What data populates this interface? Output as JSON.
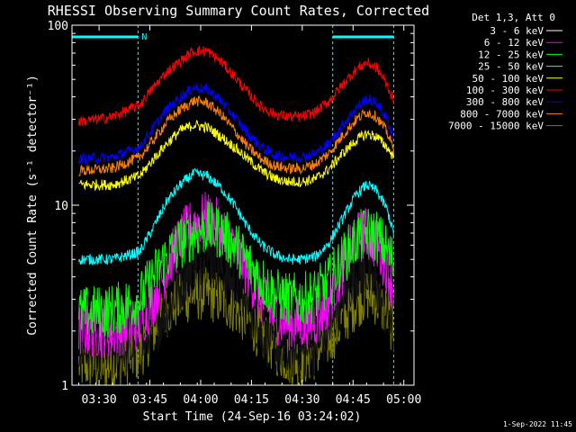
{
  "chart_data": {
    "type": "line",
    "title": "RHESSI Observing Summary Count Rates, Corrected",
    "xlabel": "Start Time (24-Sep-16 03:24:02)",
    "ylabel": "Corrected Count Rate (s⁻¹ detector⁻¹)",
    "yscale": "log",
    "ylim": [
      1,
      100
    ],
    "xlim_minutes": [
      -2,
      99
    ],
    "x_ticks": [
      {
        "label": "03:30",
        "minute": 6
      },
      {
        "label": "03:45",
        "minute": 21
      },
      {
        "label": "04:00",
        "minute": 36
      },
      {
        "label": "04:15",
        "minute": 51
      },
      {
        "label": "04:30",
        "minute": 66
      },
      {
        "label": "04:45",
        "minute": 81
      },
      {
        "label": "05:00",
        "minute": 96
      }
    ],
    "y_ticks": [
      {
        "label": "1",
        "value": 1
      },
      {
        "label": "10",
        "value": 10
      },
      {
        "label": "100",
        "value": 100
      }
    ],
    "legend_title": "Det 1,3, Att 0",
    "legend_position": "right",
    "night_label": "N",
    "night_bars": [
      {
        "start": -2,
        "end": 17.5
      },
      {
        "start": 75,
        "end": 93
      }
    ],
    "series": [
      {
        "name": "3 - 6 keV",
        "color": "#000000",
        "minute": [
          0,
          10,
          18,
          22,
          26,
          30,
          34,
          38,
          42,
          46,
          50,
          54,
          58,
          62,
          66,
          70,
          74,
          78,
          82,
          85,
          88,
          91,
          93
        ],
        "value": [
          1.6,
          1.5,
          1.6,
          2,
          2.6,
          3.5,
          4.8,
          5.2,
          4.5,
          3.5,
          2.6,
          1.9,
          1.6,
          1.5,
          1.5,
          1.6,
          2,
          3,
          4.2,
          4.2,
          3.4,
          2.4,
          1.8
        ]
      },
      {
        "name": "6 - 12 keV",
        "color": "#ff00ff",
        "minute": [
          0,
          10,
          18,
          22,
          26,
          30,
          34,
          38,
          42,
          46,
          50,
          54,
          58,
          62,
          66,
          70,
          74,
          78,
          82,
          85,
          88,
          91,
          93
        ],
        "value": [
          2,
          2,
          2.2,
          3,
          4.5,
          6.5,
          8,
          8.5,
          7.5,
          6,
          4.2,
          3,
          2.4,
          2.2,
          2.2,
          2.3,
          3,
          4.5,
          6.5,
          7,
          6,
          4.5,
          3.5
        ]
      },
      {
        "name": "12 - 25 keV",
        "color": "#00ff00",
        "minute": [
          0,
          10,
          18,
          22,
          26,
          30,
          34,
          38,
          42,
          46,
          50,
          54,
          58,
          62,
          66,
          70,
          74,
          78,
          82,
          85,
          88,
          91,
          93
        ],
        "value": [
          2.5,
          2.6,
          3,
          4,
          5.2,
          6.2,
          7,
          7.5,
          7,
          6,
          4.8,
          3.8,
          3.2,
          3,
          3,
          3.2,
          3.8,
          5,
          6.5,
          7,
          6.8,
          5.6,
          4.8
        ]
      },
      {
        "name": "25 - 50 keV",
        "color": "#00ffff",
        "minute": [
          0,
          10,
          18,
          22,
          26,
          30,
          34,
          38,
          42,
          46,
          50,
          54,
          58,
          62,
          66,
          70,
          74,
          78,
          82,
          85,
          88,
          91,
          93
        ],
        "value": [
          5,
          5,
          5.5,
          7.5,
          10.5,
          13,
          15,
          14.5,
          12.5,
          10,
          7.5,
          6,
          5.3,
          5,
          5,
          5.2,
          6.2,
          8.5,
          11.5,
          13,
          12,
          9.5,
          7
        ]
      },
      {
        "name": "50 - 100 keV",
        "color": "#ffff00",
        "minute": [
          0,
          10,
          18,
          22,
          26,
          30,
          34,
          38,
          42,
          46,
          50,
          54,
          58,
          62,
          66,
          70,
          74,
          78,
          82,
          85,
          88,
          91,
          93
        ],
        "value": [
          13,
          13,
          14.5,
          18,
          22,
          26,
          28,
          27,
          24,
          21,
          18,
          15.5,
          14,
          13.5,
          13.5,
          14,
          16,
          19.5,
          23,
          25,
          24,
          21,
          18.5
        ]
      },
      {
        "name": "100 - 300 keV",
        "color": "#ff0000",
        "minute": [
          0,
          10,
          18,
          22,
          26,
          30,
          34,
          38,
          42,
          46,
          50,
          54,
          58,
          62,
          66,
          70,
          74,
          78,
          82,
          85,
          88,
          91,
          93
        ],
        "value": [
          29,
          31,
          36,
          45,
          55,
          63,
          72,
          72,
          63,
          52,
          42,
          35,
          32,
          31,
          31,
          33,
          38,
          47,
          57,
          62,
          58,
          47,
          38
        ]
      },
      {
        "name": "300 - 800 keV",
        "color": "#0000ff",
        "minute": [
          0,
          10,
          18,
          22,
          26,
          30,
          34,
          38,
          42,
          46,
          50,
          54,
          58,
          62,
          66,
          70,
          74,
          78,
          82,
          85,
          88,
          91,
          93
        ],
        "value": [
          18,
          18.5,
          21,
          27,
          34,
          40,
          45,
          44,
          38,
          31,
          25,
          21,
          19,
          18.5,
          18.5,
          19.5,
          22,
          28,
          35,
          39,
          37,
          30,
          24
        ]
      },
      {
        "name": "800 - 7000 keV",
        "color": "#ff8000",
        "minute": [
          0,
          10,
          18,
          22,
          26,
          30,
          34,
          38,
          42,
          46,
          50,
          54,
          58,
          62,
          66,
          70,
          74,
          78,
          82,
          85,
          88,
          91,
          93
        ],
        "value": [
          15.5,
          16,
          18.5,
          23,
          29,
          34,
          38,
          37,
          32,
          26,
          21,
          18,
          16.5,
          16,
          16,
          17,
          19.5,
          24.5,
          30,
          33,
          31,
          25.5,
          20.5
        ]
      },
      {
        "name": "7000 - 15000 keV",
        "color": "#808000",
        "minute": [
          0,
          10,
          18,
          22,
          26,
          30,
          34,
          38,
          42,
          46,
          50,
          54,
          58,
          62,
          66,
          70,
          74,
          78,
          82,
          85,
          88,
          91,
          93
        ],
        "value": [
          1.3,
          1.3,
          1.5,
          2,
          2.6,
          3,
          3.2,
          3.2,
          3,
          2.7,
          2.3,
          1.9,
          1.6,
          1.4,
          1.4,
          1.5,
          1.8,
          2.3,
          2.9,
          3.2,
          3,
          2.5,
          2
        ]
      }
    ]
  },
  "footer": {
    "date_stamp": "1-Sep-2022 11:45"
  }
}
